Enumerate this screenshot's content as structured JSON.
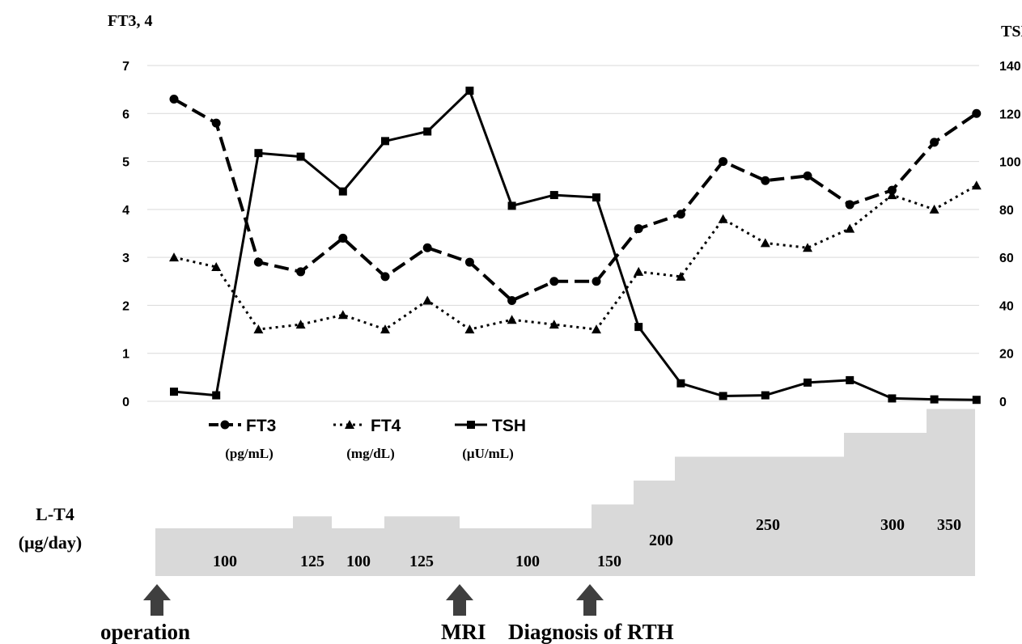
{
  "chart_data": {
    "type": "line",
    "left_axis_label": "FT3, 4",
    "right_axis_label": "TSH",
    "y_left_lim": [
      0,
      7
    ],
    "y_left_ticks": [
      "0",
      "1",
      "2",
      "3",
      "4",
      "5",
      "6",
      "7"
    ],
    "y_right_lim": [
      0,
      140
    ],
    "y_right_ticks": [
      "0",
      "20",
      "40",
      "60",
      "80",
      "100",
      "120",
      "140"
    ],
    "grid": true,
    "series": [
      {
        "name": "FT3",
        "unit": "(pg/mL)",
        "axis": "left",
        "style": "dashed",
        "marker": "circle",
        "values": [
          6.3,
          5.8,
          2.9,
          2.7,
          3.4,
          2.6,
          3.2,
          2.9,
          2.1,
          2.5,
          2.5,
          3.6,
          3.9,
          5.0,
          4.6,
          4.7,
          4.1,
          4.4,
          5.4,
          6.0
        ]
      },
      {
        "name": "FT4",
        "unit": "(mg/dL)",
        "axis": "left",
        "style": "dotted",
        "marker": "triangle",
        "values": [
          3.0,
          2.8,
          1.5,
          1.6,
          1.8,
          1.5,
          2.1,
          1.5,
          1.7,
          1.6,
          1.5,
          2.7,
          2.6,
          3.8,
          3.3,
          3.2,
          3.6,
          4.3,
          4.0,
          4.5
        ]
      },
      {
        "name": "TSH",
        "unit": "(μU/mL)",
        "axis": "right",
        "style": "solid",
        "marker": "square",
        "values": [
          4,
          2.5,
          103.5,
          102,
          87.5,
          108.5,
          112.5,
          129.5,
          81.5,
          86,
          85,
          31,
          7.5,
          2.2,
          2.5,
          7.8,
          8.8,
          1.2,
          0.8,
          0.6
        ]
      }
    ],
    "dose_section": {
      "label_line1": "L-T4",
      "label_line2": "(μg/day)",
      "segments": [
        {
          "dose": 100,
          "label": "100"
        },
        {
          "dose": 125,
          "label": "125"
        },
        {
          "dose": 100,
          "label": "100"
        },
        {
          "dose": 125,
          "label": "125"
        },
        {
          "dose": 100,
          "label": "100"
        },
        {
          "dose": 150,
          "label": "150"
        },
        {
          "dose": 200,
          "label": "200"
        },
        {
          "dose": 250,
          "label": "250"
        },
        {
          "dose": 300,
          "label": "300"
        },
        {
          "dose": 350,
          "label": "350"
        }
      ]
    },
    "events": [
      "operation",
      "MRI",
      "Diagnosis of RTH"
    ],
    "colors": {
      "line": "#000000",
      "grid": "#d9d9d9",
      "dose_fill": "#d9d9d9",
      "arrow": "#3f3f3f"
    }
  }
}
